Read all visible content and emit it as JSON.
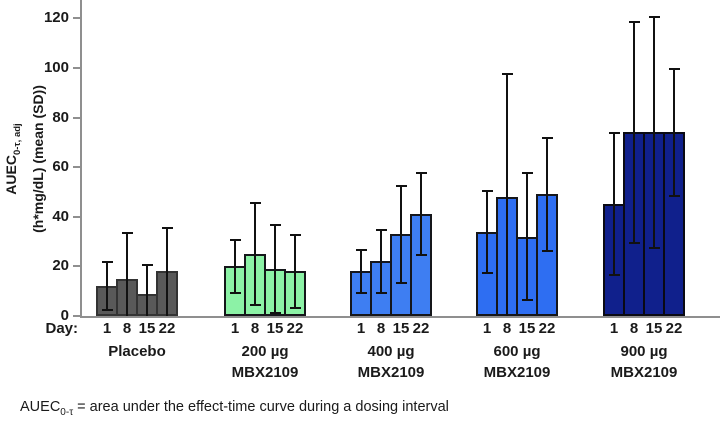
{
  "y_axis": {
    "label_main": "AUEC",
    "label_sub": "0-τ, adj",
    "label_line2": "(h*mg/dL) (mean (SD))",
    "ticks": [
      0,
      20,
      40,
      60,
      80,
      100,
      120
    ]
  },
  "x_axis": {
    "day_prefix": "Day:",
    "days": [
      "1",
      "8",
      "15",
      "22"
    ]
  },
  "footnote": {
    "term_main": "AUEC",
    "term_sub": "0-τ",
    "text": " = area under the effect-time curve during a dosing interval"
  },
  "chart_data": {
    "type": "bar",
    "title": "",
    "xlabel": "Day",
    "ylabel": "AUEC0-τ,adj (h*mg/dL) (mean (SD))",
    "ylim": [
      0,
      120
    ],
    "y_ticks": [
      0,
      20,
      40,
      60,
      80,
      100,
      120
    ],
    "grid": false,
    "legend": false,
    "error_bars": "mean ± SD, clipped at 0",
    "categories_days": [
      "1",
      "8",
      "15",
      "22"
    ],
    "groups": [
      {
        "label_line1": "Placebo",
        "label_line2": "",
        "fill": "#595959",
        "border": "#333333",
        "means": [
          12,
          15,
          9,
          18
        ],
        "sds": [
          10,
          19,
          12,
          18
        ]
      },
      {
        "label_line1": "200 µg",
        "label_line2": "MBX2109",
        "fill": "#8CF2A6",
        "border": "#15161a",
        "means": [
          20,
          25,
          19,
          18
        ],
        "sds": [
          11,
          21,
          18,
          15
        ]
      },
      {
        "label_line1": "400 µg",
        "label_line2": "MBX2109",
        "fill": "#3E7EF2",
        "border": "#15161a",
        "means": [
          18,
          22,
          33,
          41
        ],
        "sds": [
          9,
          13,
          20,
          17
        ]
      },
      {
        "label_line1": "600 µg",
        "label_line2": "MBX2109",
        "fill": "#2E6EF2",
        "border": "#15161a",
        "means": [
          34,
          48,
          32,
          49
        ],
        "sds": [
          17,
          50,
          26,
          23
        ]
      },
      {
        "label_line1": "900 µg",
        "label_line2": "MBX2109",
        "fill": "#10208C",
        "border": "#0a0a14",
        "means": [
          45,
          74,
          74,
          74
        ],
        "sds": [
          29,
          45,
          47,
          26
        ]
      }
    ]
  }
}
